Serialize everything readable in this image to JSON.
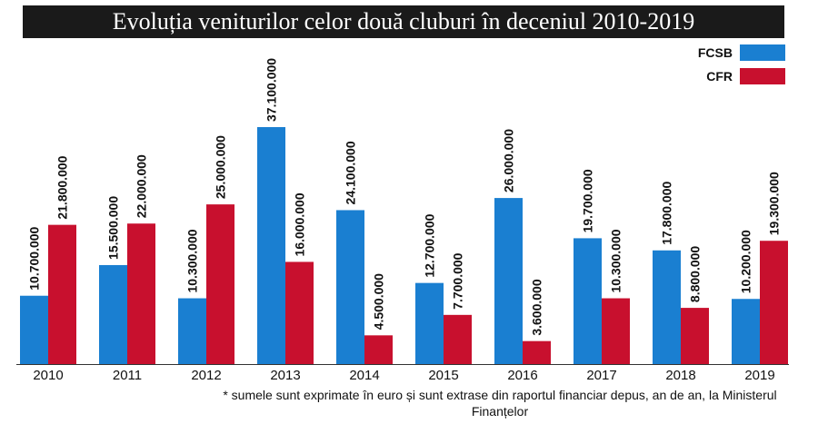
{
  "chart_data": {
    "type": "bar",
    "title": "Evoluția veniturilor celor două cluburi în deceniul 2010-2019",
    "categories": [
      "2010",
      "2011",
      "2012",
      "2013",
      "2014",
      "2015",
      "2016",
      "2017",
      "2018",
      "2019"
    ],
    "series": [
      {
        "name": "FCSB",
        "color": "#1a7fd1",
        "values": [
          10700000,
          15500000,
          10300000,
          37100000,
          24100000,
          12700000,
          26000000,
          19700000,
          17800000,
          10200000
        ],
        "labels": [
          "10.700.000",
          "15.500.000",
          "10.300.000",
          "37.100.000",
          "24.100.000",
          "12.700.000",
          "26.000.000",
          "19.700.000",
          "17.800.000",
          "10.200.000"
        ]
      },
      {
        "name": "CFR",
        "color": "#c8102e",
        "values": [
          21800000,
          22000000,
          25000000,
          16000000,
          4500000,
          7700000,
          3600000,
          10300000,
          8800000,
          19300000
        ],
        "labels": [
          "21.800.000",
          "22.000.000",
          "25.000.000",
          "16.000.000",
          "4.500.000",
          "7.700.000",
          "3.600.000",
          "10.300.000",
          "8.800.000",
          "19.300.000"
        ]
      }
    ],
    "ylim": [
      0,
      40000000
    ],
    "grid": false,
    "legend": "top-right",
    "footnote": "* sumele sunt exprimate în euro și sunt extrase din raportul financiar depus, an de an, la Ministerul Finanțelor"
  }
}
